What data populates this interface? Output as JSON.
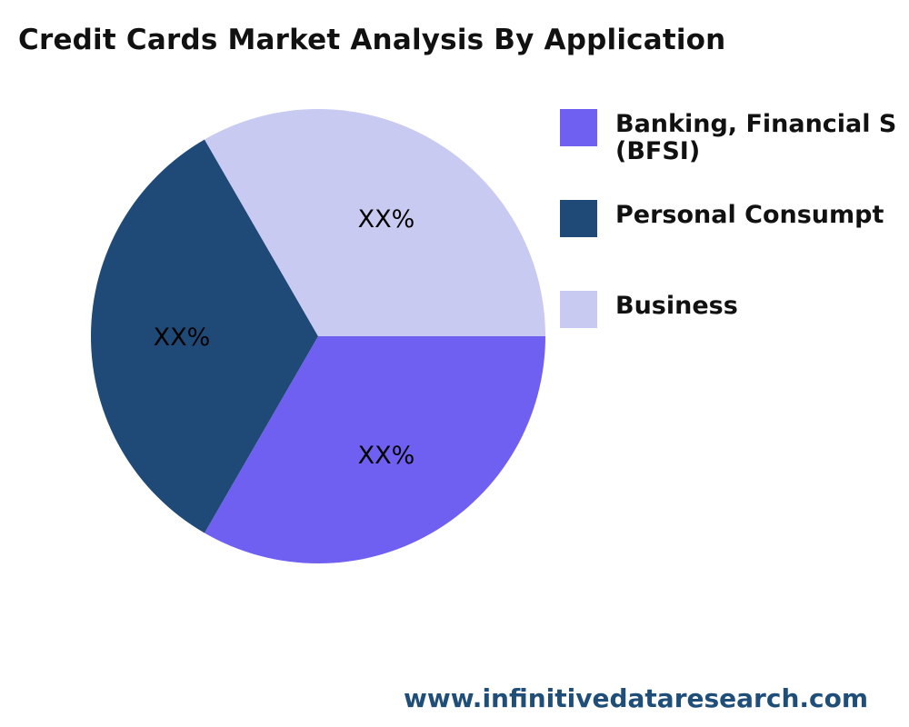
{
  "chart_data": {
    "type": "pie",
    "title": "Credit Cards Market Analysis By Application",
    "slices": [
      {
        "name": "Banking, Financial S",
        "name_line2": "(BFSI)",
        "value": 33.33,
        "label": "XX%",
        "color": "#7060f2"
      },
      {
        "name": "Personal Consumpt",
        "value": 33.33,
        "label": "XX%",
        "color": "#1f4a78"
      },
      {
        "name": "Business",
        "value": 33.33,
        "label": "XX%",
        "color": "#c9caf2"
      }
    ],
    "legend_position": "right"
  },
  "footer": "www.infinitivedataresearch.com"
}
